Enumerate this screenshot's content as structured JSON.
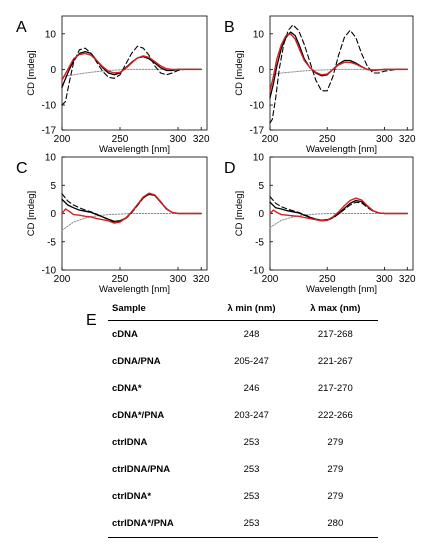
{
  "chart_data": [
    {
      "panel": "A",
      "type": "line",
      "xlabel": "Wavelength [nm]",
      "ylabel": "CD [mdeg]",
      "xlim": [
        200,
        325
      ],
      "ylim": [
        -17,
        15
      ],
      "xticks": [
        200,
        250,
        300,
        320
      ],
      "yticks": [
        -17,
        -10,
        0,
        10
      ],
      "series": [
        {
          "style": "black-solid",
          "x": [
            200,
            205,
            210,
            215,
            220,
            225,
            230,
            235,
            240,
            245,
            250,
            255,
            260,
            265,
            270,
            275,
            280,
            285,
            290,
            295,
            300,
            305,
            310,
            315,
            320
          ],
          "y": [
            -5,
            -1,
            2.5,
            4.5,
            5,
            4.5,
            2.5,
            0.5,
            -1,
            -1.5,
            -1,
            0.5,
            2,
            3.2,
            3.6,
            3,
            1.8,
            0.5,
            -0.3,
            -0.3,
            0,
            0,
            0,
            0,
            0
          ]
        },
        {
          "style": "black-dashed",
          "x": [
            200,
            203,
            206,
            210,
            215,
            220,
            225,
            230,
            235,
            240,
            245,
            250,
            255,
            260,
            265,
            270,
            275,
            280,
            285,
            290,
            295,
            300,
            305,
            310,
            315,
            320
          ],
          "y": [
            -10,
            -9,
            -4,
            2,
            5.5,
            6,
            4.5,
            2,
            -0.5,
            -2.2,
            -2.5,
            -1.5,
            1.5,
            4.5,
            6.5,
            6,
            4,
            1,
            -1,
            -1.5,
            -1,
            -0.3,
            0,
            0,
            0,
            0
          ]
        },
        {
          "style": "red-solid",
          "x": [
            200,
            205,
            210,
            215,
            220,
            225,
            230,
            235,
            240,
            245,
            250,
            255,
            260,
            265,
            270,
            275,
            280,
            285,
            290,
            295,
            300,
            305,
            310,
            315,
            320
          ],
          "y": [
            -3,
            0,
            3,
            4.2,
            4.5,
            4,
            2.5,
            0.8,
            -0.5,
            -1,
            -0.8,
            0.3,
            1.8,
            3.2,
            3.8,
            3.4,
            2.2,
            1,
            0.2,
            0,
            0,
            0,
            0,
            0,
            0
          ]
        },
        {
          "style": "gray-dotted",
          "x": [
            200,
            210,
            220,
            230,
            240,
            250,
            260,
            270,
            280,
            290,
            300,
            310,
            320
          ],
          "y": [
            -2,
            -1.5,
            -1,
            -0.6,
            -0.3,
            -0.1,
            0,
            0,
            0,
            0,
            0,
            0,
            0
          ]
        }
      ]
    },
    {
      "panel": "B",
      "type": "line",
      "xlabel": "Wavelength [nm]",
      "ylabel": "CD [mdeg]",
      "xlim": [
        200,
        325
      ],
      "ylim": [
        -17,
        15
      ],
      "xticks": [
        200,
        250,
        300,
        320
      ],
      "yticks": [
        -17,
        -10,
        0,
        10
      ],
      "series": [
        {
          "style": "black-solid",
          "x": [
            200,
            203,
            206,
            210,
            214,
            218,
            222,
            226,
            230,
            235,
            240,
            245,
            250,
            255,
            260,
            265,
            270,
            275,
            280,
            285,
            290,
            300,
            310,
            320
          ],
          "y": [
            -8,
            -4,
            1,
            6,
            9,
            10.5,
            9.5,
            6.5,
            3,
            0.5,
            -1,
            -1.8,
            -1.5,
            0,
            1.5,
            2.5,
            2.5,
            1.8,
            0.8,
            0,
            -0.3,
            0,
            0,
            0
          ]
        },
        {
          "style": "black-dashed",
          "x": [
            200,
            202,
            205,
            208,
            212,
            216,
            220,
            225,
            230,
            235,
            240,
            245,
            250,
            255,
            260,
            265,
            270,
            275,
            280,
            285,
            290,
            295,
            300,
            310,
            320
          ],
          "y": [
            -15,
            -14,
            -8,
            0,
            7,
            11,
            12.5,
            11,
            7,
            2,
            -3,
            -6,
            -6,
            -2,
            4,
            9,
            11,
            9,
            4.5,
            1,
            -1,
            -1,
            -0.5,
            0,
            0
          ]
        },
        {
          "style": "red-solid",
          "x": [
            200,
            203,
            206,
            210,
            214,
            218,
            222,
            226,
            230,
            235,
            240,
            245,
            250,
            255,
            260,
            265,
            270,
            275,
            280,
            285,
            290,
            300,
            310,
            320
          ],
          "y": [
            -6,
            -2,
            3,
            7,
            9.5,
            10,
            8.5,
            5.5,
            2.5,
            0.5,
            -0.8,
            -1.5,
            -1.3,
            0,
            1.3,
            2,
            2,
            1.5,
            0.7,
            0,
            -0.2,
            0,
            0,
            0
          ]
        },
        {
          "style": "gray-dotted",
          "x": [
            200,
            210,
            220,
            230,
            240,
            250,
            260,
            270,
            280,
            290,
            300,
            310,
            320
          ],
          "y": [
            -1.5,
            -1,
            -0.7,
            -0.4,
            -0.2,
            -0.1,
            0,
            0,
            0,
            0,
            0,
            0,
            0
          ]
        }
      ]
    },
    {
      "panel": "C",
      "type": "line",
      "xlabel": "Wavelength [nm]",
      "ylabel": "CD [mdeg]",
      "xlim": [
        200,
        325
      ],
      "ylim": [
        -10,
        10
      ],
      "xticks": [
        200,
        250,
        300,
        320
      ],
      "yticks": [
        -10,
        -5,
        0,
        5,
        10
      ],
      "series": [
        {
          "style": "black-solid",
          "x": [
            200,
            205,
            210,
            215,
            220,
            225,
            230,
            235,
            240,
            245,
            250,
            255,
            260,
            265,
            270,
            275,
            280,
            285,
            290,
            295,
            300,
            305,
            310,
            315,
            320
          ],
          "y": [
            2.5,
            1.5,
            1,
            0.6,
            0.4,
            0.2,
            -0.2,
            -0.6,
            -1,
            -1.4,
            -1.3,
            -0.8,
            0.2,
            1.5,
            2.8,
            3.4,
            3.2,
            2,
            0.8,
            0.2,
            0,
            0,
            0,
            0,
            0
          ]
        },
        {
          "style": "black-dashed",
          "x": [
            200,
            205,
            210,
            215,
            220,
            225,
            230,
            235,
            240,
            245,
            250,
            255,
            260,
            265,
            270,
            275,
            280,
            285,
            290,
            295,
            300,
            305,
            310,
            315,
            320
          ],
          "y": [
            3.5,
            2.2,
            1.5,
            1,
            0.6,
            0.3,
            -0.1,
            -0.6,
            -1.1,
            -1.5,
            -1.4,
            -0.9,
            0.1,
            1.4,
            2.7,
            3.5,
            3.3,
            2.1,
            0.9,
            0.2,
            0,
            0,
            0,
            0,
            0
          ]
        },
        {
          "style": "red-solid",
          "x": [
            200,
            203,
            206,
            210,
            215,
            220,
            225,
            230,
            235,
            240,
            245,
            250,
            255,
            260,
            265,
            270,
            275,
            280,
            285,
            290,
            295,
            300,
            305,
            310,
            315,
            320
          ],
          "y": [
            0,
            0.8,
            0.4,
            -0.2,
            -0.3,
            -0.5,
            -0.6,
            -0.9,
            -1.1,
            -1.3,
            -1.7,
            -1.5,
            -0.8,
            0.3,
            1.6,
            2.9,
            3.6,
            3.3,
            2.1,
            0.8,
            0.2,
            0,
            0,
            0,
            0,
            0
          ]
        },
        {
          "style": "gray-dotted",
          "x": [
            200,
            210,
            220,
            230,
            240,
            250,
            260,
            270,
            280,
            290,
            300,
            310,
            320
          ],
          "y": [
            -3,
            -1.5,
            -0.8,
            -0.4,
            -0.2,
            -0.1,
            0,
            0,
            0,
            0,
            0,
            0,
            0
          ]
        }
      ]
    },
    {
      "panel": "D",
      "type": "line",
      "xlabel": "Wavelength [nm]",
      "ylabel": "CD [mdeg]",
      "xlim": [
        200,
        325
      ],
      "ylim": [
        -10,
        10
      ],
      "xticks": [
        200,
        250,
        300,
        320
      ],
      "yticks": [
        -10,
        -5,
        0,
        5,
        10
      ],
      "series": [
        {
          "style": "black-solid",
          "x": [
            200,
            205,
            210,
            215,
            220,
            225,
            230,
            235,
            240,
            245,
            250,
            255,
            260,
            265,
            270,
            275,
            280,
            285,
            290,
            295,
            300,
            305,
            310,
            315,
            320
          ],
          "y": [
            2,
            1,
            0.8,
            0.5,
            0.3,
            0.1,
            -0.3,
            -0.7,
            -1,
            -1.2,
            -1.1,
            -0.7,
            0,
            0.9,
            1.8,
            2.3,
            2.1,
            1.3,
            0.5,
            0.1,
            0,
            0,
            0,
            0,
            0
          ]
        },
        {
          "style": "black-dashed",
          "x": [
            200,
            205,
            210,
            215,
            220,
            225,
            230,
            235,
            240,
            245,
            250,
            255,
            260,
            265,
            270,
            275,
            280,
            285,
            290,
            295,
            300,
            305,
            310,
            315,
            320
          ],
          "y": [
            3,
            1.8,
            1.2,
            0.8,
            0.5,
            0.2,
            -0.2,
            -0.6,
            -1,
            -1.3,
            -1.2,
            -0.8,
            -0.1,
            0.7,
            1.5,
            2,
            1.9,
            1.1,
            0.4,
            0.1,
            0,
            0,
            0,
            0,
            0
          ]
        },
        {
          "style": "red-solid",
          "x": [
            200,
            203,
            206,
            210,
            215,
            220,
            225,
            230,
            235,
            240,
            245,
            250,
            255,
            260,
            265,
            270,
            275,
            280,
            285,
            290,
            295,
            300,
            305,
            310,
            315,
            320
          ],
          "y": [
            0,
            0.6,
            0.2,
            -0.2,
            -0.3,
            -0.4,
            -0.5,
            -0.7,
            -0.9,
            -1.1,
            -1.3,
            -1.2,
            -0.6,
            0.3,
            1.4,
            2.3,
            2.7,
            2.4,
            1.4,
            0.5,
            0.1,
            0,
            0,
            0,
            0,
            0
          ]
        },
        {
          "style": "gray-dotted",
          "x": [
            200,
            210,
            220,
            230,
            240,
            250,
            260,
            270,
            280,
            290,
            300,
            310,
            320
          ],
          "y": [
            -2.5,
            -1.2,
            -0.6,
            -0.3,
            -0.1,
            0,
            0,
            0,
            0,
            0,
            0,
            0,
            0
          ]
        }
      ]
    },
    {
      "panel": "E",
      "type": "table",
      "columns": [
        "Sample",
        "λ min (nm)",
        "λ max (nm)"
      ],
      "rows": [
        [
          "cDNA",
          "248",
          "217-268"
        ],
        [
          "cDNA/PNA",
          "205-247",
          "221-267"
        ],
        [
          "cDNA*",
          "246",
          "217-270"
        ],
        [
          "cDNA*/PNA",
          "203-247",
          "222-266"
        ],
        [
          "ctrlDNA",
          "253",
          "279"
        ],
        [
          "ctrlDNA/PNA",
          "253",
          "279"
        ],
        [
          "ctrlDNA*",
          "253",
          "279"
        ],
        [
          "ctrlDNA*/PNA",
          "253",
          "280"
        ]
      ]
    }
  ],
  "colors": {
    "black": "#000000",
    "red": "#d42020",
    "gray": "#8a8a8a"
  }
}
